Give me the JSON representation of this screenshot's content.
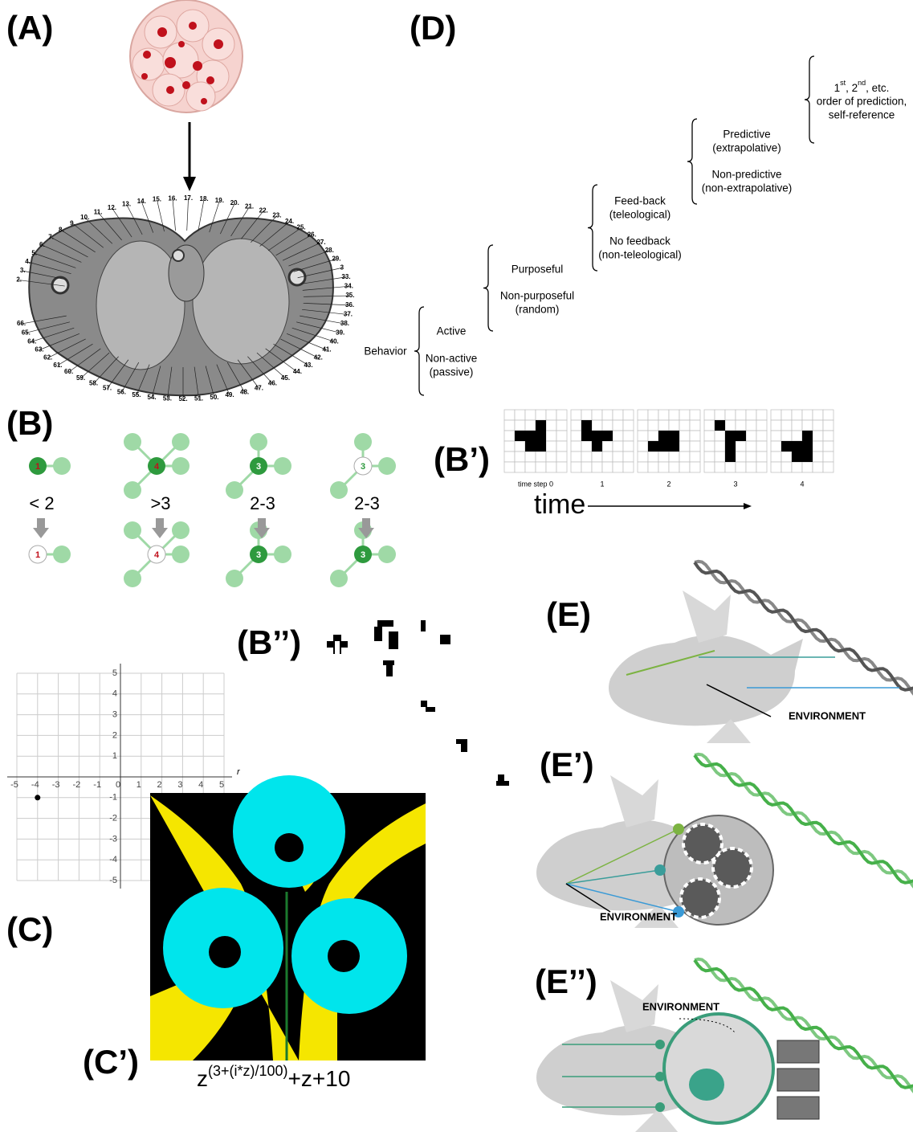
{
  "panel_labels": {
    "a": "(A)",
    "b": "(B)",
    "b_prime": "(B’)",
    "b_double_prime": "(B’’)",
    "c": "(C)",
    "c_prime": "(C’)",
    "d": "(D)",
    "e": "(E)",
    "e_prime": "(E’)",
    "e_double_prime": "(E’’)"
  },
  "anatomy_labels": [
    "2.",
    "3.",
    "4.",
    "5.",
    "6.",
    "7.",
    "8.",
    "9.",
    "10.",
    "11.",
    "12.",
    "13.",
    "14.",
    "15.",
    "16.",
    "17.",
    "18.",
    "19.",
    "20.",
    "21.",
    "22.",
    "23.",
    "24.",
    "25.",
    "26.",
    "27.",
    "28.",
    "29.",
    "3",
    "33.",
    "34.",
    "35.",
    "36.",
    "37.",
    "38.",
    "39.",
    "40.",
    "41.",
    "42.",
    "43.",
    "44.",
    "45.",
    "46.",
    "47.",
    "48.",
    "49.",
    "50.",
    "51.",
    "52.",
    "53.",
    "54.",
    "55.",
    "56.",
    "57.",
    "58.",
    "59.",
    "60.",
    "61.",
    "62.",
    "63.",
    "64.",
    "65.",
    "66."
  ],
  "b_rules": [
    {
      "center": "1",
      "condition": "< 2",
      "result": "1"
    },
    {
      "center": "4",
      "condition": ">3",
      "result": "4"
    },
    {
      "center": "3",
      "condition": "2-3",
      "result": "3"
    },
    {
      "center": "3",
      "condition": "2-3",
      "result": "3"
    }
  ],
  "b_prime": {
    "steps": [
      "time step 0",
      "1",
      "2",
      "3",
      "4"
    ],
    "axis": "time"
  },
  "c_plot": {
    "xticks": [
      -5,
      -4,
      -3,
      -2,
      -1,
      0,
      1,
      2,
      3,
      4,
      5
    ],
    "yticks": [
      -5,
      -4,
      -3,
      -2,
      -1,
      1,
      2,
      3,
      4,
      5
    ],
    "axis_label": "r",
    "point": [
      -4,
      -1
    ]
  },
  "c_prime": {
    "formula": {
      "base": "z",
      "exponent": "(3+(i*z)/100)",
      "tail": "+z+10"
    }
  },
  "d_tree": {
    "root": "Behavior",
    "active": "Active",
    "non_active": [
      "Non-active",
      "(passive)"
    ],
    "purposeful": "Purposeful",
    "non_purposeful": [
      "Non-purposeful",
      "(random)"
    ],
    "feedback": [
      "Feed-back",
      "(teleological)"
    ],
    "no_feedback": [
      "No feedback",
      "(non-teleological)"
    ],
    "predictive": [
      "Predictive",
      "(extrapolative)"
    ],
    "non_predictive": [
      "Non-predictive",
      "(non-extrapolative)"
    ],
    "orders": {
      "first": "1",
      "first_sup": "st",
      "second": ", 2",
      "second_sup": "nd",
      "rest": ", etc.",
      "line2": "order of prediction,",
      "line3": "self-reference"
    }
  },
  "e_panels": [
    {
      "environment": "ENVIRONMENT"
    },
    {
      "environment": "ENVIRONMENT"
    },
    {
      "environment": "ENVIRONMENT"
    }
  ]
}
